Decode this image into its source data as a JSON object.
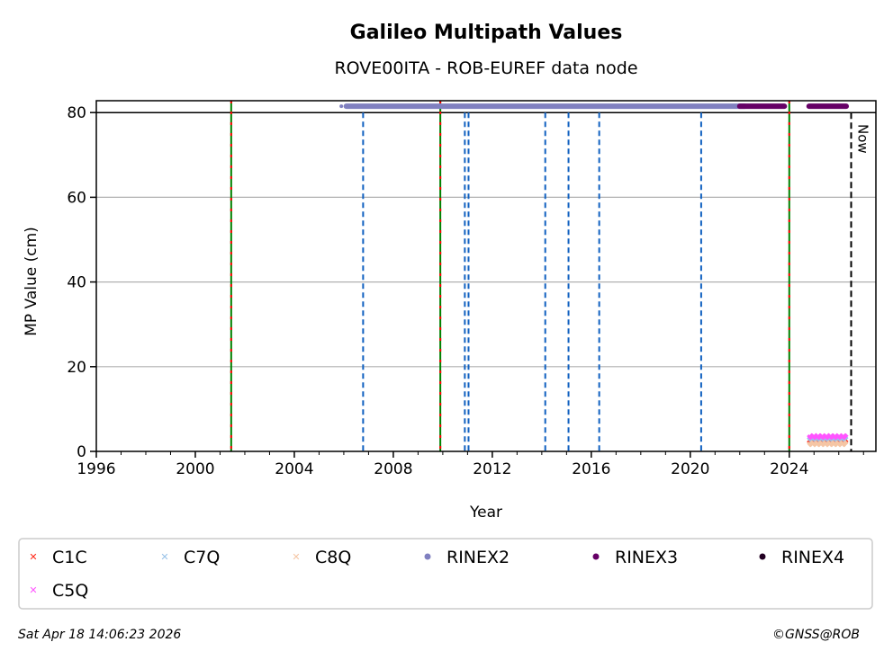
{
  "chart_data": {
    "type": "scatter",
    "title": "Galileo Multipath Values",
    "subtitle": "ROVE00ITA - ROB-EUREF data node",
    "xlabel": "Year",
    "ylabel": "MP Value (cm)",
    "xlim": [
      1996,
      2027.5
    ],
    "ylim": [
      0,
      82.8
    ],
    "xticks": [
      1996,
      2000,
      2004,
      2008,
      2012,
      2016,
      2020,
      2024
    ],
    "yticks": [
      0,
      20,
      40,
      60,
      80
    ],
    "grid": "y",
    "threshold_line": 80,
    "red_green_lines": [
      2001.45,
      2009.9,
      2024.0
    ],
    "blue_dashed_lines": [
      2006.78,
      2010.89,
      2011.04,
      2014.14,
      2015.08,
      2016.32,
      2020.44
    ],
    "now_line": {
      "x": 2026.5,
      "label": "Now"
    },
    "series": [
      {
        "name": "C1C",
        "color": "#ff2a1a",
        "marker": "x",
        "x_range": [
          2024.8,
          2026.3
        ],
        "value": 2.2
      },
      {
        "name": "C7Q",
        "color": "#99c2e8",
        "marker": "x",
        "x_range": [
          2024.8,
          2026.3
        ],
        "value": 3.0
      },
      {
        "name": "C8Q",
        "color": "#f5c6a5",
        "marker": "x",
        "x_range": [
          2024.8,
          2026.3
        ],
        "value": 1.8
      },
      {
        "name": "RINEX2",
        "color": "#8080c0",
        "marker": "o",
        "segments": [
          [
            2005.9,
            2005.9
          ],
          [
            2006.1,
            2022.2
          ]
        ],
        "value": 81.5
      },
      {
        "name": "RINEX3",
        "color": "#660066",
        "marker": "o",
        "segments": [
          [
            2022.0,
            2023.8
          ],
          [
            2024.8,
            2026.3
          ]
        ],
        "value": 81.5
      },
      {
        "name": "RINEX4",
        "color": "#220022",
        "marker": "o",
        "segments": [],
        "value": 81.5
      },
      {
        "name": "C5Q",
        "color": "#ff55ff",
        "marker": "x",
        "x_range": [
          2024.8,
          2026.3
        ],
        "value": 3.5
      }
    ],
    "legend_placement": "bottom"
  },
  "footer": {
    "timestamp": "Sat Apr 18 14:06:23 2026",
    "credit": "©GNSS@ROB"
  }
}
